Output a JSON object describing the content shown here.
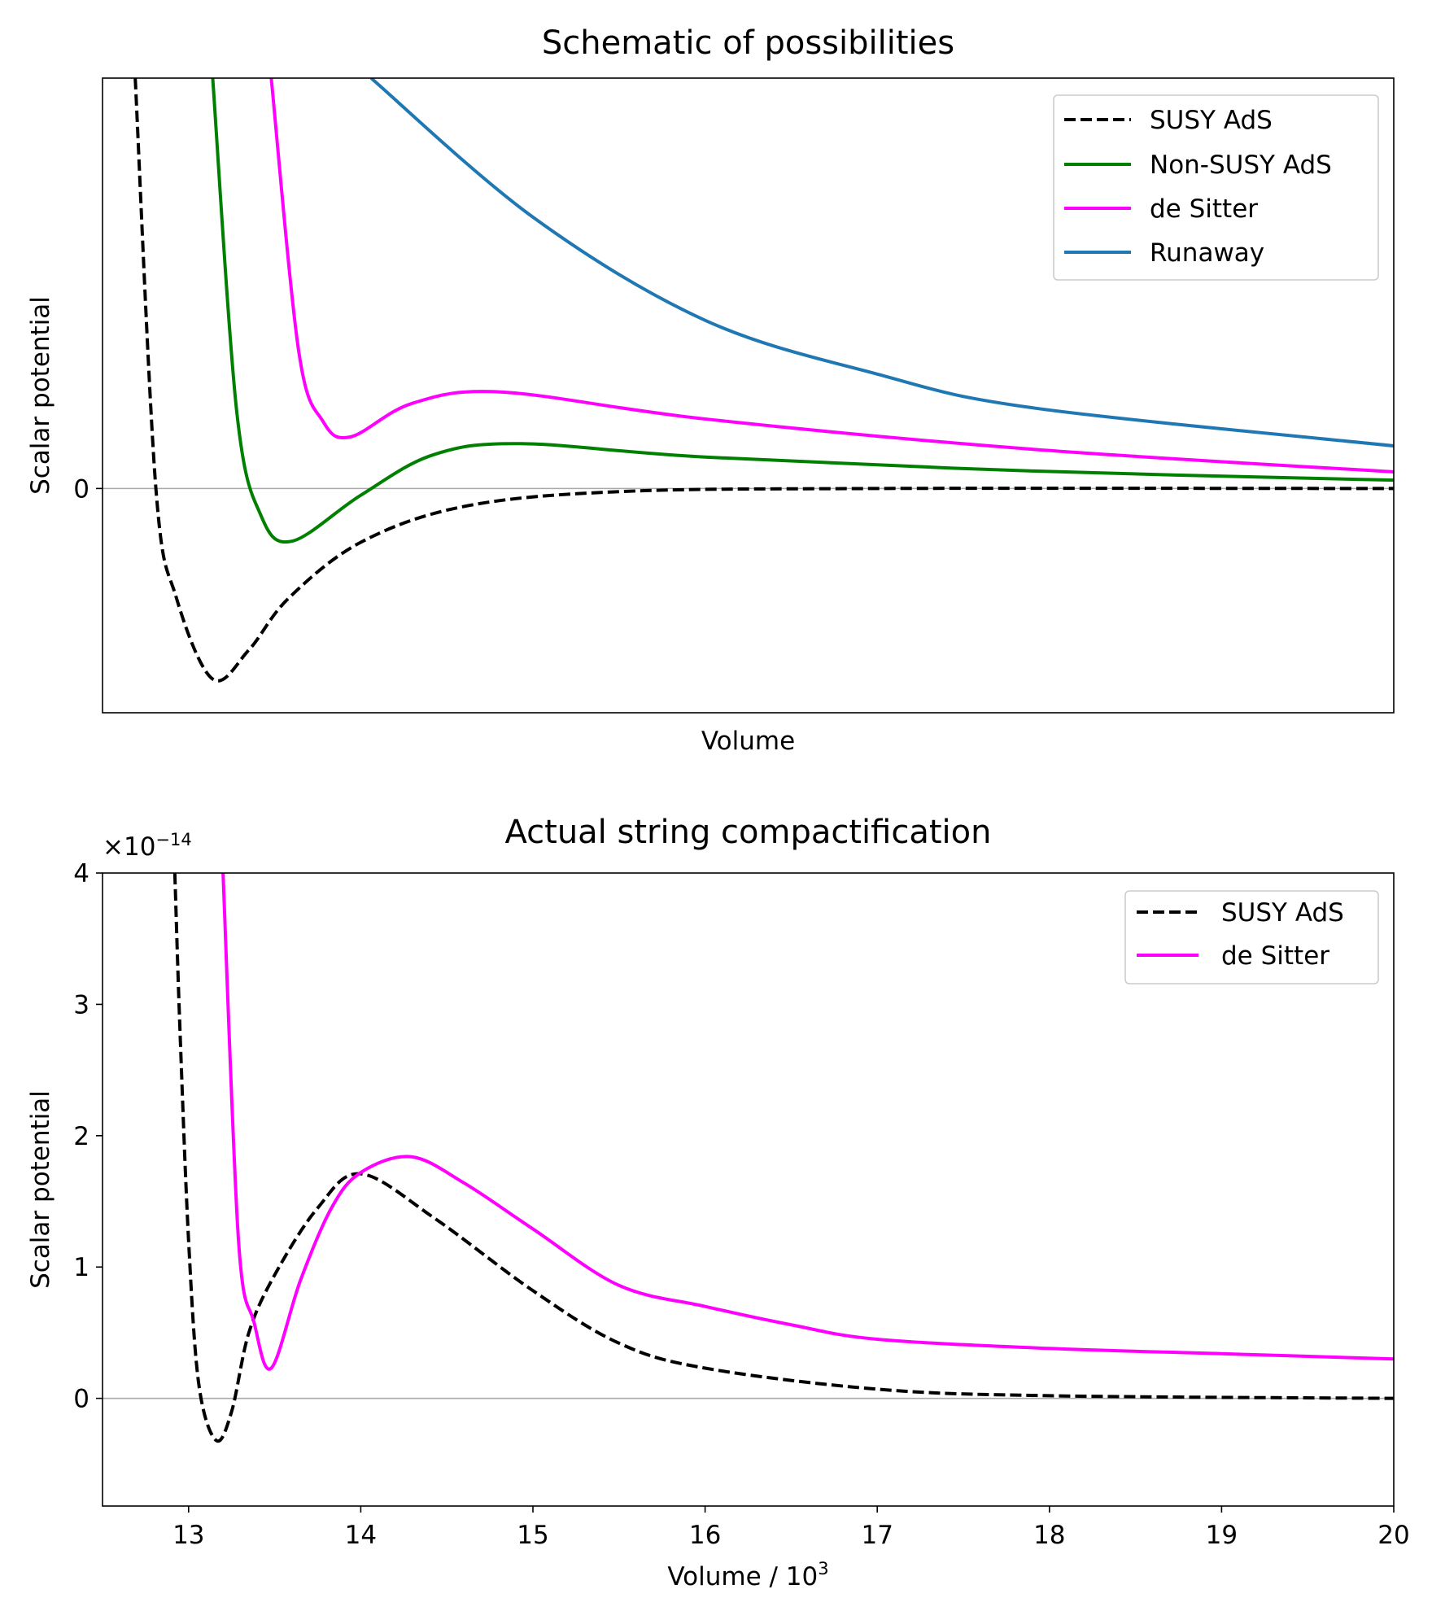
{
  "chart_data": [
    {
      "type": "line",
      "title": "Schematic of possibilities",
      "xlabel": "Volume",
      "ylabel": "Scalar potential",
      "xlim": [
        12.5,
        20
      ],
      "ylim": [
        -1,
        1.83
      ],
      "xticks": [],
      "yticks": [
        {
          "value": 0,
          "label": "0"
        }
      ],
      "zero_line": true,
      "grid": false,
      "legend_position": "top-right",
      "series": [
        {
          "name": "SUSY AdS",
          "color": "#000000",
          "style": "dashed",
          "x": [
            12.69,
            12.81,
            12.93,
            13.14,
            13.35,
            13.58,
            14.0,
            14.6,
            15.5,
            17,
            20
          ],
          "y": [
            1.83,
            0,
            -0.49,
            -0.85,
            -0.72,
            -0.49,
            -0.24,
            -0.08,
            -0.014,
            0,
            0
          ]
        },
        {
          "name": "Non-SUSY AdS",
          "color": "#008000",
          "style": "solid",
          "x": [
            13.14,
            13.28,
            13.42,
            13.6,
            14.0,
            14.42,
            14.93,
            16.0,
            17.9,
            20
          ],
          "y": [
            1.83,
            0.34,
            -0.12,
            -0.235,
            -0.03,
            0.15,
            0.2,
            0.14,
            0.078,
            0.037
          ]
        },
        {
          "name": "de Sitter",
          "color": "#ff00ff",
          "style": "solid",
          "x": [
            13.48,
            13.64,
            13.78,
            13.94,
            14.3,
            14.82,
            16.0,
            17.9,
            20
          ],
          "y": [
            1.83,
            0.61,
            0.3,
            0.23,
            0.38,
            0.43,
            0.31,
            0.175,
            0.074
          ]
        },
        {
          "name": "Runaway",
          "color": "#1f77b4",
          "style": "solid",
          "x": [
            14.06,
            15.0,
            16.0,
            17.0,
            17.9,
            20
          ],
          "y": [
            1.83,
            1.21,
            0.75,
            0.51,
            0.36,
            0.19
          ]
        }
      ]
    },
    {
      "type": "line",
      "title": "Actual string compactification",
      "xlabel": "Volume / 10",
      "xlabel_superscript": "3",
      "ylabel": "Scalar potential",
      "offset_text": "×10",
      "offset_exponent": "−14",
      "xlim": [
        12.5,
        20
      ],
      "ylim": [
        -0.82,
        4
      ],
      "xticks": [
        "13",
        "14",
        "15",
        "16",
        "17",
        "18",
        "19",
        "20"
      ],
      "yticks": [
        "0",
        "1",
        "2",
        "3",
        "4"
      ],
      "zero_line": true,
      "grid": false,
      "legend_position": "top-right",
      "series": [
        {
          "name": "SUSY AdS",
          "color": "#000000",
          "style": "dashed",
          "x": [
            12.92,
            12.95,
            13.0,
            13.06,
            13.16,
            13.25,
            13.35,
            13.5,
            13.75,
            14.0,
            14.43,
            15.0,
            15.5,
            16.0,
            17.0,
            18.0,
            20.0
          ],
          "y": [
            4.0,
            2.8,
            1.2,
            0.1,
            -0.32,
            -0.1,
            0.5,
            0.94,
            1.45,
            1.71,
            1.37,
            0.82,
            0.42,
            0.23,
            0.07,
            0.02,
            0.0
          ]
        },
        {
          "name": "de Sitter",
          "color": "#ff00ff",
          "style": "solid",
          "x": [
            13.2,
            13.29,
            13.38,
            13.48,
            13.65,
            13.83,
            14.0,
            14.29,
            14.6,
            15.0,
            15.5,
            16.0,
            16.5,
            17.0,
            18.0,
            19.0,
            20.0
          ],
          "y": [
            4.0,
            1.2,
            0.58,
            0.23,
            0.9,
            1.45,
            1.72,
            1.84,
            1.64,
            1.29,
            0.86,
            0.7,
            0.56,
            0.45,
            0.38,
            0.34,
            0.3
          ]
        }
      ]
    }
  ]
}
